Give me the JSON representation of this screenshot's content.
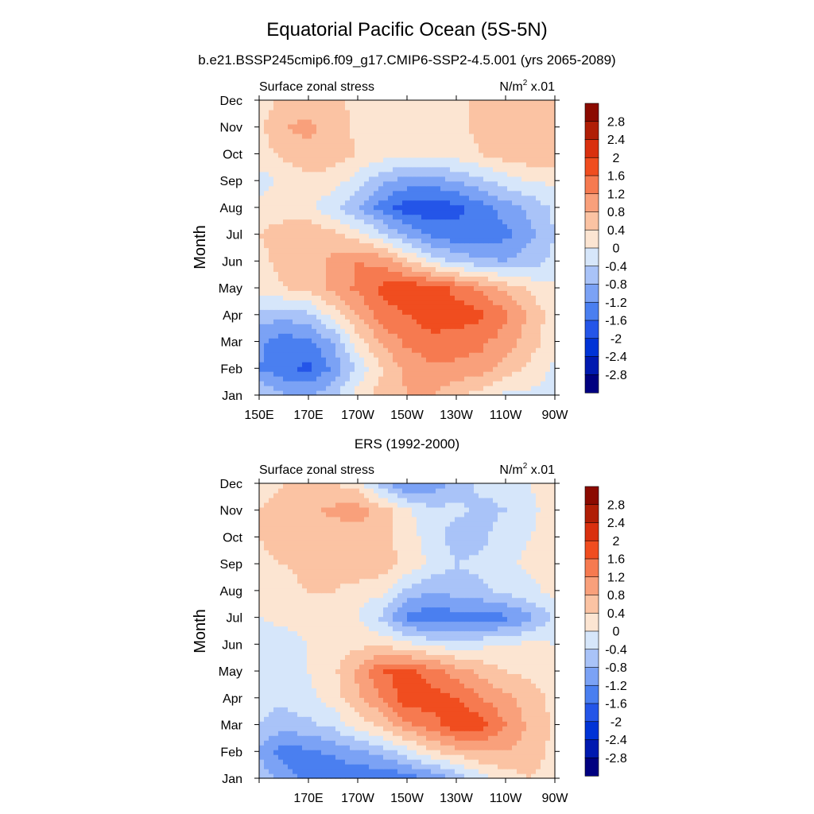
{
  "figure": {
    "title": "Equatorial Pacific Ocean (5S-5N)"
  },
  "colors": {
    "levels": [
      -2.8,
      -2.4,
      -2.0,
      -1.6,
      -1.2,
      -0.8,
      -0.4,
      0,
      0.4,
      0.8,
      1.2,
      1.6,
      2.0,
      2.4,
      2.8
    ],
    "bins": [
      "#000080",
      "#0019b0",
      "#0033d6",
      "#2455e8",
      "#4a7ff0",
      "#7ba2f5",
      "#a9c3f8",
      "#d6e6fa",
      "#fce5d2",
      "#fbc3a3",
      "#f9a07b",
      "#f67a50",
      "#f04d1f",
      "#d9300f",
      "#b01e06",
      "#8b0a00"
    ]
  },
  "panels": [
    {
      "subtitle": "b.e21.BSSP245cmip6.f09_g17.CMIP6-SSP2-4.5.001 (yrs 2065-2089)",
      "left_label": "Surface zonal stress",
      "units_base": "N/m",
      "units_sup": "2",
      "units_tail": " x.01",
      "ylabel": "Month",
      "x_tick_labels": [
        "150E",
        "170E",
        "170W",
        "150W",
        "130W",
        "110W",
        "90W"
      ],
      "y_tick_labels": [
        "Jan",
        "Feb",
        "Mar",
        "Apr",
        "May",
        "Jun",
        "Jul",
        "Aug",
        "Sep",
        "Oct",
        "Nov",
        "Dec"
      ],
      "colorbar_labels": [
        "2.8",
        "2.4",
        "2",
        "1.6",
        "1.2",
        "0.8",
        "0.4",
        "0",
        "-0.4",
        "-0.8",
        "-1.2",
        "-1.6",
        "-2",
        "-2.4",
        "-2.8"
      ]
    },
    {
      "subtitle": "ERS (1992-2000)",
      "left_label": "Surface zonal stress",
      "units_base": "N/m",
      "units_sup": "2",
      "units_tail": " x.01",
      "ylabel": "Month",
      "x_tick_labels": [
        "",
        "170E",
        "170W",
        "150W",
        "130W",
        "110W",
        "90W"
      ],
      "y_tick_labels": [
        "Jan",
        "Feb",
        "Mar",
        "Apr",
        "May",
        "Jun",
        "Jul",
        "Aug",
        "Sep",
        "Oct",
        "Nov",
        "Dec"
      ],
      "colorbar_labels": [
        "2.8",
        "2.4",
        "2",
        "1.6",
        "1.2",
        "0.8",
        "0.4",
        "0",
        "-0.4",
        "-0.8",
        "-1.2",
        "-1.6",
        "-2",
        "-2.4",
        "-2.8"
      ]
    }
  ],
  "chart_data": [
    {
      "type": "heatmap",
      "subtitle": "b.e21.BSSP245cmip6.f09_g17.CMIP6-SSP2-4.5.001 (yrs 2065-2089)",
      "xlabel": "",
      "ylabel": "Month",
      "x": [
        "150E",
        "160E",
        "170E",
        "180",
        "170W",
        "160W",
        "150W",
        "140W",
        "130W",
        "120W",
        "110W",
        "100W",
        "90W"
      ],
      "y": [
        "Jan",
        "Feb",
        "Mar",
        "Apr",
        "May",
        "Jun",
        "Jul",
        "Aug",
        "Sep",
        "Oct",
        "Nov",
        "Dec"
      ],
      "values": [
        [
          -0.3,
          -0.8,
          -0.8,
          -0.5,
          0.2,
          0.6,
          0.8,
          0.8,
          0.5,
          0.2,
          -0.1,
          -0.1,
          -0.2
        ],
        [
          -1.2,
          -1.5,
          -1.7,
          -1.1,
          -0.3,
          0.4,
          0.9,
          1.1,
          1.1,
          1.0,
          0.6,
          0.3,
          -0.1
        ],
        [
          -1.1,
          -1.4,
          -1.3,
          -0.8,
          0.2,
          0.9,
          1.3,
          1.5,
          1.4,
          1.3,
          1.0,
          0.6,
          0.1
        ],
        [
          -0.6,
          -0.7,
          -0.5,
          0.2,
          0.8,
          1.4,
          1.6,
          1.8,
          1.8,
          1.7,
          1.3,
          0.7,
          0.2
        ],
        [
          0.2,
          0.4,
          0.5,
          0.9,
          1.3,
          1.7,
          1.9,
          1.8,
          1.5,
          1.1,
          0.7,
          0.3,
          0.1
        ],
        [
          0.3,
          0.5,
          0.6,
          0.9,
          1.2,
          1.1,
          0.5,
          -0.1,
          -0.5,
          -0.7,
          -0.8,
          -0.6,
          -0.3
        ],
        [
          0.4,
          0.6,
          0.7,
          0.5,
          0.2,
          -0.3,
          -0.9,
          -1.3,
          -1.5,
          -1.5,
          -1.3,
          -0.9,
          -0.4
        ],
        [
          0.2,
          0.2,
          0.1,
          -0.3,
          -0.8,
          -1.4,
          -1.8,
          -1.9,
          -1.7,
          -1.4,
          -1.0,
          -0.7,
          -0.3
        ],
        [
          -0.2,
          0.1,
          0.3,
          0.2,
          -0.2,
          -0.7,
          -1.0,
          -1.0,
          -0.8,
          -0.5,
          -0.2,
          0.0,
          0.1
        ],
        [
          0.2,
          0.5,
          0.7,
          0.6,
          0.4,
          0.2,
          0.2,
          0.1,
          0.2,
          0.4,
          0.6,
          0.7,
          0.6
        ],
        [
          0.3,
          0.8,
          0.9,
          0.6,
          0.3,
          0.2,
          0.2,
          0.2,
          0.3,
          0.5,
          0.7,
          0.8,
          0.7
        ],
        [
          0.2,
          0.5,
          0.6,
          0.5,
          0.3,
          0.2,
          0.1,
          0.1,
          0.3,
          0.5,
          0.6,
          0.5,
          0.4
        ]
      ],
      "levels": [
        -2.8,
        -2.4,
        -2.0,
        -1.6,
        -1.2,
        -0.8,
        -0.4,
        0,
        0.4,
        0.8,
        1.2,
        1.6,
        2.0,
        2.4,
        2.8
      ]
    },
    {
      "type": "heatmap",
      "subtitle": "ERS (1992-2000)",
      "xlabel": "",
      "ylabel": "Month",
      "x": [
        "150E",
        "160E",
        "170E",
        "180",
        "170W",
        "160W",
        "150W",
        "140W",
        "130W",
        "120W",
        "110W",
        "100W",
        "90W"
      ],
      "y": [
        "Jan",
        "Feb",
        "Mar",
        "Apr",
        "May",
        "Jun",
        "Jul",
        "Aug",
        "Sep",
        "Oct",
        "Nov",
        "Dec"
      ],
      "values": [
        [
          -0.5,
          -1.0,
          -1.4,
          -1.6,
          -1.5,
          -1.6,
          -1.4,
          -1.2,
          -0.7,
          -0.2,
          0.2,
          0.4,
          0.2
        ],
        [
          -0.9,
          -1.4,
          -1.3,
          -1.1,
          -0.9,
          -0.6,
          -0.2,
          0.3,
          0.6,
          0.8,
          0.8,
          0.6,
          0.3
        ],
        [
          -0.4,
          -0.6,
          -0.5,
          -0.3,
          0.2,
          0.5,
          1.1,
          1.4,
          1.9,
          1.8,
          1.2,
          0.7,
          0.3
        ],
        [
          -0.3,
          -0.3,
          -0.1,
          0.2,
          0.7,
          1.2,
          1.9,
          1.8,
          1.6,
          1.2,
          0.9,
          0.6,
          0.3
        ],
        [
          -0.2,
          -0.2,
          0.0,
          0.3,
          0.9,
          1.6,
          1.7,
          1.4,
          1.0,
          0.7,
          0.4,
          0.3,
          0.2
        ],
        [
          -0.2,
          -0.2,
          0.0,
          0.2,
          0.3,
          0.3,
          0.1,
          -0.1,
          -0.2,
          -0.1,
          0.0,
          0.1,
          0.0
        ],
        [
          0.0,
          0.1,
          0.2,
          0.2,
          0.0,
          -0.5,
          -1.3,
          -1.5,
          -1.4,
          -1.4,
          -1.3,
          -0.9,
          -0.3
        ],
        [
          0.2,
          0.3,
          0.4,
          0.4,
          0.2,
          0.1,
          -0.5,
          -0.8,
          -0.6,
          -0.5,
          -0.3,
          -0.1,
          0.1
        ],
        [
          0.3,
          0.4,
          0.5,
          0.7,
          0.8,
          0.6,
          0.3,
          -0.1,
          -0.4,
          -0.3,
          -0.1,
          0.1,
          0.2
        ],
        [
          0.4,
          0.6,
          0.5,
          0.5,
          0.6,
          0.5,
          0.2,
          -0.2,
          -0.6,
          -0.5,
          -0.2,
          0.0,
          0.1
        ],
        [
          0.4,
          0.6,
          0.7,
          0.9,
          1.0,
          0.6,
          0.1,
          -0.3,
          -0.3,
          -0.5,
          -0.4,
          -0.1,
          0.2
        ],
        [
          0.2,
          0.4,
          0.5,
          0.4,
          0.2,
          -0.6,
          -1.3,
          -1.1,
          -0.6,
          -0.3,
          -0.3,
          0.0,
          0.3
        ]
      ],
      "levels": [
        -2.8,
        -2.4,
        -2.0,
        -1.6,
        -1.2,
        -0.8,
        -0.4,
        0,
        0.4,
        0.8,
        1.2,
        1.6,
        2.0,
        2.4,
        2.8
      ]
    }
  ]
}
